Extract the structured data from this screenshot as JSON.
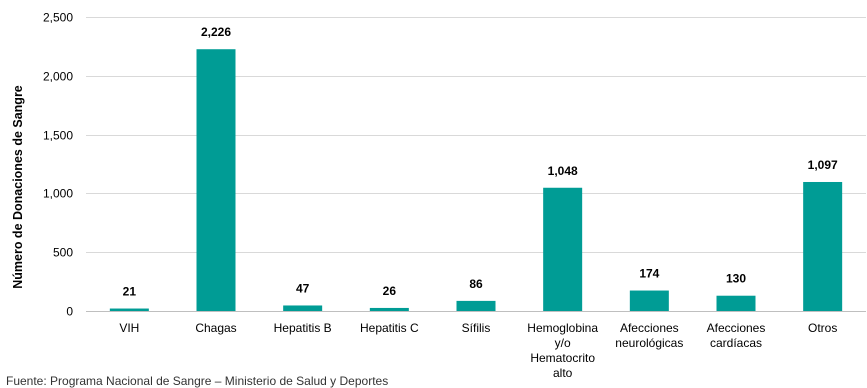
{
  "chart_data": {
    "type": "bar",
    "ylabel": "Número de Donaciones de Sangre",
    "xlabel": "",
    "title": "",
    "ylim": [
      0,
      2500
    ],
    "yticks": [
      0,
      500,
      1000,
      1500,
      2000,
      2500
    ],
    "ytick_labels": [
      "0",
      "500",
      "1,000",
      "1,500",
      "2,000",
      "2,500"
    ],
    "grid": "horizontal",
    "legend": "none",
    "bar_color": "#009c95",
    "categories": [
      [
        "VIH"
      ],
      [
        "Chagas"
      ],
      [
        "Hepatitis B"
      ],
      [
        "Hepatitis C"
      ],
      [
        "Sífilis"
      ],
      [
        "Hemoglobina",
        "y/o",
        "Hematocrito",
        "alto"
      ],
      [
        "Afecciones",
        "neurológicas"
      ],
      [
        "Afecciones",
        "cardíacas"
      ],
      [
        "Otros"
      ]
    ],
    "values": [
      21,
      2226,
      47,
      26,
      86,
      1048,
      174,
      130,
      1097
    ],
    "data_labels": [
      "21",
      "2,226",
      "47",
      "26",
      "86",
      "1,048",
      "174",
      "130",
      "1,097"
    ]
  },
  "source_note": "Fuente: Programa Nacional de Sangre – Ministerio de Salud y Deportes"
}
